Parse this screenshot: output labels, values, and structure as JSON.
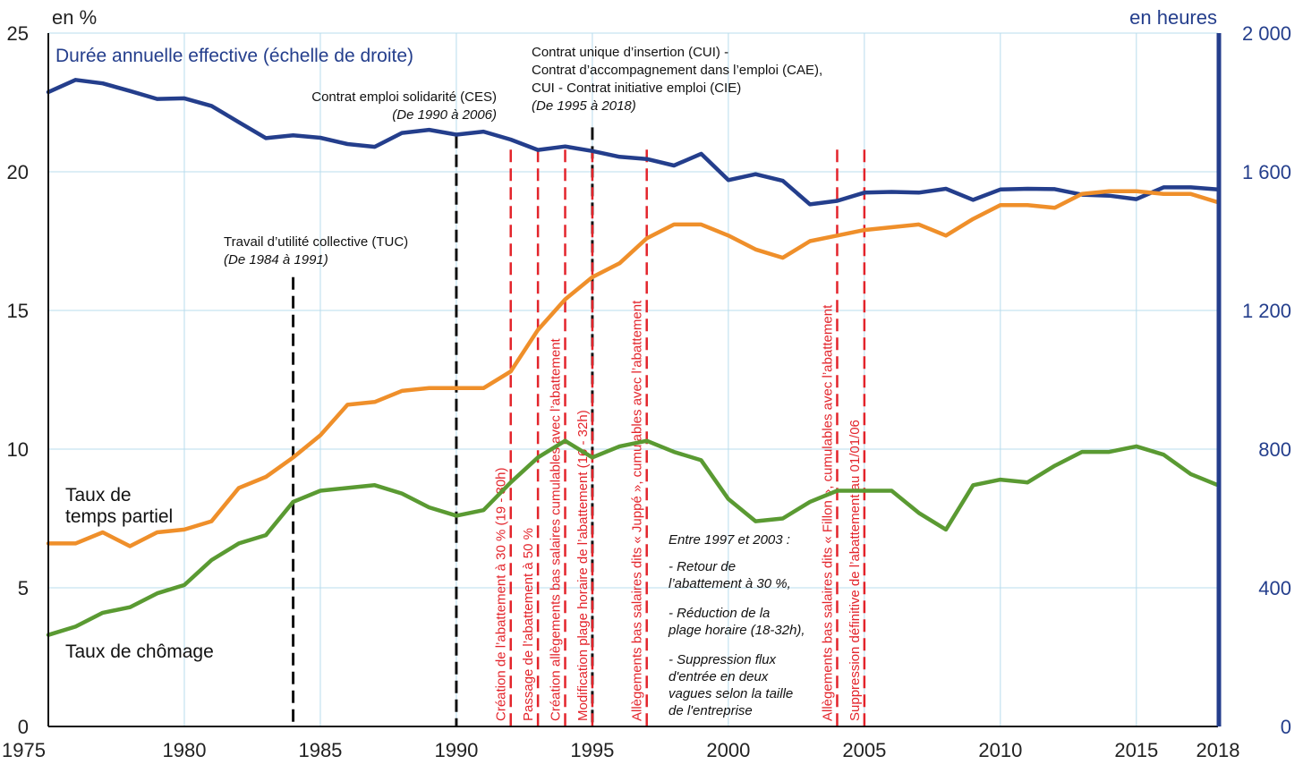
{
  "chart_data": {
    "type": "line",
    "y_left_label": "en %",
    "y_right_label": "en heures",
    "x_ticks": [
      1975,
      1980,
      1985,
      1990,
      1995,
      2000,
      2005,
      2010,
      2015,
      2018
    ],
    "y_left_ticks": [
      "0",
      "5",
      "10",
      "15",
      "20",
      "25"
    ],
    "y_right_ticks": [
      "0",
      "400",
      "800",
      "1 200",
      "1 600",
      "2 000"
    ],
    "xlim": [
      1975,
      2018
    ],
    "ylim_left": [
      0,
      25
    ],
    "ylim_right": [
      0,
      2000
    ],
    "colors": {
      "duree": "#243e8c",
      "partiel": "#ef8f2a",
      "chomage": "#5a9a32",
      "grid": "#b8dced",
      "event_red": "#e3242b",
      "event_black": "#111111"
    },
    "series": [
      {
        "name": "Durée annuelle effective (échelle de droite)",
        "axis": "right",
        "x": [
          1975,
          1976,
          1977,
          1978,
          1979,
          1980,
          1981,
          1982,
          1983,
          1984,
          1985,
          1986,
          1987,
          1988,
          1989,
          1990,
          1991,
          1992,
          1993,
          1994,
          1995,
          1996,
          1997,
          1998,
          1999,
          2000,
          2001,
          2002,
          2003,
          2004,
          2005,
          2006,
          2007,
          2008,
          2009,
          2010,
          2011,
          2012,
          2013,
          2014,
          2015,
          2016,
          2017,
          2018
        ],
        "values": [
          1830,
          1865,
          1855,
          1833,
          1810,
          1812,
          1790,
          1743,
          1697,
          1705,
          1698,
          1680,
          1672,
          1712,
          1721,
          1707,
          1716,
          1693,
          1663,
          1673,
          1660,
          1643,
          1637,
          1618,
          1652,
          1576,
          1593,
          1574,
          1506,
          1516,
          1540,
          1542,
          1540,
          1551,
          1519,
          1549,
          1551,
          1550,
          1534,
          1531,
          1521,
          1555,
          1555,
          1549
        ]
      },
      {
        "name": "Taux de temps partiel",
        "axis": "left",
        "x": [
          1975,
          1976,
          1977,
          1978,
          1979,
          1980,
          1981,
          1982,
          1983,
          1984,
          1985,
          1986,
          1987,
          1988,
          1989,
          1990,
          1991,
          1992,
          1993,
          1994,
          1995,
          1996,
          1997,
          1998,
          1999,
          2000,
          2001,
          2002,
          2003,
          2004,
          2005,
          2006,
          2007,
          2008,
          2009,
          2010,
          2011,
          2012,
          2013,
          2014,
          2015,
          2016,
          2017,
          2018
        ],
        "values": [
          6.6,
          6.6,
          7.0,
          6.5,
          7.0,
          7.1,
          7.4,
          8.6,
          9.0,
          9.7,
          10.5,
          11.6,
          11.7,
          12.1,
          12.2,
          12.2,
          12.2,
          12.8,
          14.3,
          15.4,
          16.2,
          16.7,
          17.6,
          18.1,
          18.1,
          17.7,
          17.2,
          16.9,
          17.5,
          17.7,
          17.9,
          18.0,
          18.1,
          17.7,
          18.3,
          18.8,
          18.8,
          18.7,
          19.2,
          19.3,
          19.3,
          19.2,
          19.2,
          18.9
        ]
      },
      {
        "name": "Taux de chômage",
        "axis": "left",
        "x": [
          1975,
          1976,
          1977,
          1978,
          1979,
          1980,
          1981,
          1982,
          1983,
          1984,
          1985,
          1986,
          1987,
          1988,
          1989,
          1990,
          1991,
          1992,
          1993,
          1994,
          1995,
          1996,
          1997,
          1998,
          1999,
          2000,
          2001,
          2002,
          2003,
          2004,
          2005,
          2006,
          2007,
          2008,
          2009,
          2010,
          2011,
          2012,
          2013,
          2014,
          2015,
          2016,
          2017,
          2018
        ],
        "values": [
          3.3,
          3.6,
          4.1,
          4.3,
          4.8,
          5.1,
          6.0,
          6.6,
          6.9,
          8.1,
          8.5,
          8.6,
          8.7,
          8.4,
          7.9,
          7.6,
          7.8,
          8.8,
          9.7,
          10.3,
          9.7,
          10.1,
          10.3,
          9.9,
          9.6,
          8.2,
          7.4,
          7.5,
          8.1,
          8.5,
          8.5,
          8.5,
          7.7,
          7.1,
          8.7,
          8.9,
          8.8,
          9.4,
          9.9,
          9.9,
          10.1,
          9.8,
          9.1,
          8.7
        ]
      }
    ],
    "series_labels": {
      "duree": "Durée annuelle effective (échelle de droite)",
      "partiel_l1": "Taux de",
      "partiel_l2": "temps partiel",
      "chomage": "Taux de chômage"
    },
    "events_black": [
      {
        "year": 1984,
        "top": 16.2
      },
      {
        "year": 1990,
        "top": 21.3
      },
      {
        "year": 1995,
        "top": 21.6
      }
    ],
    "events_red": [
      {
        "year": 1992,
        "top": 20.8,
        "label": "Création de l’abattement à 30 % (19 - 30h)"
      },
      {
        "year": 1993,
        "top": 20.8,
        "label": "Passage de l’abattement à 50 %"
      },
      {
        "year": 1994,
        "top": 20.8,
        "label": "Création allègements bas salaires cumulables avec l’abattement"
      },
      {
        "year": 1995,
        "top": 20.8,
        "label": "Modification plage horaire de l’abattement (16 - 32h)"
      },
      {
        "year": 1997,
        "top": 20.8,
        "label": "Allègements bas salaires dits « Juppé », cumulables avec l’abattement"
      },
      {
        "year": 2004,
        "top": 20.8,
        "label": "Allègements bas salaires dits « Fillon », cumulables avec l’abattement"
      },
      {
        "year": 2005,
        "top": 20.8,
        "label": "Suppression définitive de l’abattement au 01/01/06"
      }
    ],
    "annotations": {
      "tuc_title": "Travail d’utilité collective (TUC)",
      "tuc_period": "(De 1984 à 1991)",
      "ces_title": "Contrat emploi solidarité (CES)",
      "ces_period": "(De 1990 à 2006)",
      "cui_l1": "Contrat unique d’insertion (CUI) -",
      "cui_l2": "Contrat d’accompagnement dans l’emploi (CAE),",
      "cui_l3": "CUI - Contrat initiative emploi (CIE)",
      "cui_period": "(De 1995 à 2018)",
      "box_lines": [
        "Entre 1997 et 2003 :",
        "- Retour de",
        "l’abattement à 30 %,",
        "- Réduction de la",
        "plage horaire (18-32h),",
        "- Suppression flux",
        "d'entrée en deux",
        "vagues selon la taille",
        "de l'entreprise"
      ]
    }
  }
}
